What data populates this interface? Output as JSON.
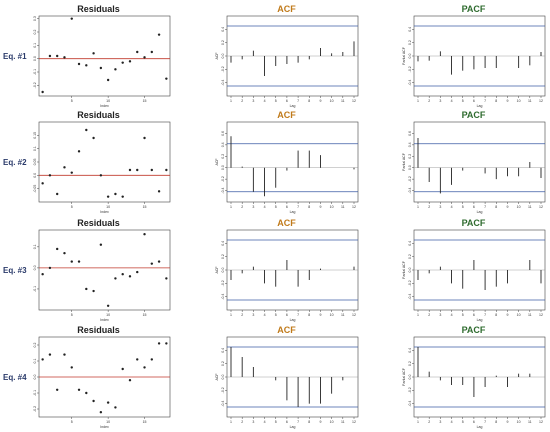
{
  "colors": {
    "residuals_title": "#222222",
    "acf_title": "#c07a1a",
    "pacf_title": "#2e6b2e",
    "row_label": "#2a3a6a",
    "zero_line": "#c0392b",
    "conf_band": "#3b5ba5",
    "marks": "#222222",
    "frame": "#444444"
  },
  "chart_data": [
    {
      "type": "scatter",
      "row": 0,
      "panel": "residuals",
      "row_label": "Eq. #1",
      "title": "Residuals",
      "xlabel": "Index",
      "ylabel": "",
      "x": [
        1,
        2,
        3,
        4,
        5,
        6,
        7,
        8,
        9,
        10,
        11,
        12,
        13,
        14,
        15,
        16,
        17,
        18
      ],
      "values": [
        -0.25,
        0.02,
        0.02,
        0.01,
        0.3,
        -0.04,
        -0.05,
        0.04,
        -0.07,
        -0.16,
        -0.08,
        -0.03,
        -0.02,
        0.05,
        0.01,
        0.05,
        0.18,
        -0.15
      ],
      "ylim": [
        -0.28,
        0.32
      ],
      "xlim": [
        0.5,
        18.5
      ],
      "zero_line": 0,
      "yticks": [
        -0.2,
        -0.1,
        0.0,
        0.1,
        0.2,
        0.3
      ],
      "xticks": [
        5,
        10,
        15
      ]
    },
    {
      "type": "bar",
      "row": 0,
      "panel": "acf",
      "title": "ACF",
      "xlabel": "Lag",
      "ylabel": "ACF",
      "lags": [
        1,
        2,
        3,
        4,
        5,
        6,
        7,
        8,
        9,
        10,
        11,
        12
      ],
      "values": [
        -0.1,
        -0.05,
        0.08,
        -0.3,
        -0.15,
        -0.12,
        -0.1,
        -0.05,
        0.12,
        0.04,
        0.06,
        0.22
      ],
      "conf": 0.45,
      "ylim": [
        -0.6,
        0.6
      ],
      "yticks": [
        -0.4,
        -0.2,
        0.0,
        0.2,
        0.4
      ],
      "xticks": [
        1,
        2,
        3,
        4,
        5,
        6,
        7,
        8,
        9,
        10,
        11,
        12
      ]
    },
    {
      "type": "bar",
      "row": 0,
      "panel": "pacf",
      "title": "PACF",
      "xlabel": "Lag",
      "ylabel": "Partial ACF",
      "lags": [
        1,
        2,
        3,
        4,
        5,
        6,
        7,
        8,
        9,
        10,
        11,
        12
      ],
      "values": [
        -0.08,
        -0.07,
        0.07,
        -0.28,
        -0.22,
        -0.2,
        -0.18,
        -0.18,
        0.0,
        -0.18,
        -0.14,
        0.06
      ],
      "conf": 0.45,
      "ylim": [
        -0.6,
        0.6
      ],
      "yticks": [
        -0.4,
        -0.2,
        0.0,
        0.2,
        0.4
      ],
      "xticks": [
        1,
        2,
        3,
        4,
        5,
        6,
        7,
        8,
        9,
        10,
        11,
        12
      ]
    },
    {
      "type": "scatter",
      "row": 1,
      "panel": "residuals",
      "row_label": "Eq. #2",
      "title": "Residuals",
      "xlabel": "Index",
      "ylabel": "",
      "x": [
        1,
        2,
        3,
        4,
        5,
        6,
        7,
        8,
        9,
        10,
        11,
        12,
        13,
        14,
        15,
        16,
        17,
        18
      ],
      "values": [
        -0.03,
        0.0,
        -0.07,
        0.03,
        0.01,
        0.09,
        0.17,
        0.14,
        0.0,
        -0.08,
        -0.07,
        -0.08,
        0.02,
        0.02,
        0.14,
        0.02,
        -0.06,
        0.02
      ],
      "ylim": [
        -0.1,
        0.2
      ],
      "xlim": [
        0.5,
        18.5
      ],
      "zero_line": 0,
      "yticks": [
        -0.05,
        0.0,
        0.05,
        0.1,
        0.15
      ],
      "xticks": [
        5,
        10,
        15
      ]
    },
    {
      "type": "bar",
      "row": 1,
      "panel": "acf",
      "title": "ACF",
      "xlabel": "Lag",
      "ylabel": "ACF",
      "lags": [
        1,
        2,
        3,
        4,
        5,
        6,
        7,
        8,
        9,
        10,
        11,
        12
      ],
      "values": [
        0.55,
        0.02,
        -0.42,
        -0.5,
        -0.35,
        -0.05,
        0.3,
        0.3,
        0.22,
        0.0,
        0.0,
        -0.03
      ],
      "conf": 0.42,
      "ylim": [
        -0.6,
        0.8
      ],
      "yticks": [
        -0.4,
        -0.2,
        0.0,
        0.2,
        0.4,
        0.6
      ],
      "xticks": [
        1,
        2,
        3,
        4,
        5,
        6,
        7,
        8,
        9,
        10,
        11,
        12
      ]
    },
    {
      "type": "bar",
      "row": 1,
      "panel": "pacf",
      "title": "PACF",
      "xlabel": "Lag",
      "ylabel": "Partial ACF",
      "lags": [
        1,
        2,
        3,
        4,
        5,
        6,
        7,
        8,
        9,
        10,
        11,
        12
      ],
      "values": [
        0.52,
        -0.25,
        -0.45,
        -0.3,
        -0.05,
        0.0,
        -0.1,
        -0.2,
        -0.15,
        -0.15,
        0.1,
        -0.18
      ],
      "conf": 0.42,
      "ylim": [
        -0.6,
        0.8
      ],
      "yticks": [
        -0.4,
        -0.2,
        0.0,
        0.2,
        0.4,
        0.6
      ],
      "xticks": [
        1,
        2,
        3,
        4,
        5,
        6,
        7,
        8,
        9,
        10,
        11,
        12
      ]
    },
    {
      "type": "scatter",
      "row": 2,
      "panel": "residuals",
      "row_label": "Eq. #3",
      "title": "Residuals",
      "xlabel": "Index",
      "ylabel": "",
      "x": [
        1,
        2,
        3,
        4,
        5,
        6,
        7,
        8,
        9,
        10,
        11,
        12,
        13,
        14,
        15,
        16,
        17,
        18
      ],
      "values": [
        -0.03,
        0.0,
        0.09,
        0.07,
        0.03,
        0.03,
        -0.1,
        -0.11,
        0.11,
        -0.18,
        -0.05,
        -0.03,
        -0.04,
        -0.02,
        0.16,
        0.02,
        0.03,
        -0.05
      ],
      "ylim": [
        -0.2,
        0.18
      ],
      "xlim": [
        0.5,
        18.5
      ],
      "zero_line": 0,
      "yticks": [
        -0.1,
        0.0,
        0.1
      ],
      "xticks": [
        5,
        10,
        15
      ]
    },
    {
      "type": "bar",
      "row": 2,
      "panel": "acf",
      "title": "ACF",
      "xlabel": "Lag",
      "ylabel": "ACF",
      "lags": [
        1,
        2,
        3,
        4,
        5,
        6,
        7,
        8,
        9,
        10,
        11,
        12
      ],
      "values": [
        -0.15,
        -0.05,
        0.05,
        -0.2,
        -0.25,
        0.15,
        -0.25,
        -0.15,
        0.02,
        0.0,
        0.0,
        0.05
      ],
      "conf": 0.45,
      "ylim": [
        -0.6,
        0.6
      ],
      "yticks": [
        -0.4,
        -0.2,
        0.0,
        0.2,
        0.4
      ],
      "xticks": [
        1,
        2,
        3,
        4,
        5,
        6,
        7,
        8,
        9,
        10,
        11,
        12
      ]
    },
    {
      "type": "bar",
      "row": 2,
      "panel": "pacf",
      "title": "PACF",
      "xlabel": "Lag",
      "ylabel": "Partial ACF",
      "lags": [
        1,
        2,
        3,
        4,
        5,
        6,
        7,
        8,
        9,
        10,
        11,
        12
      ],
      "values": [
        -0.15,
        -0.05,
        0.05,
        -0.2,
        -0.28,
        0.15,
        -0.3,
        -0.25,
        -0.2,
        0.0,
        0.15,
        -0.2
      ],
      "conf": 0.45,
      "ylim": [
        -0.6,
        0.6
      ],
      "yticks": [
        -0.4,
        -0.2,
        0.0,
        0.2,
        0.4
      ],
      "xticks": [
        1,
        2,
        3,
        4,
        5,
        6,
        7,
        8,
        9,
        10,
        11,
        12
      ]
    },
    {
      "type": "scatter",
      "row": 3,
      "panel": "residuals",
      "row_label": "Eq. #4",
      "title": "Residuals",
      "xlabel": "Index",
      "ylabel": "",
      "x": [
        1,
        2,
        3,
        4,
        5,
        6,
        7,
        8,
        9,
        10,
        11,
        12,
        13,
        14,
        15,
        16,
        17,
        18
      ],
      "values": [
        0.11,
        0.14,
        -0.08,
        0.14,
        0.06,
        -0.08,
        -0.1,
        -0.15,
        -0.22,
        -0.16,
        -0.19,
        0.05,
        -0.02,
        0.11,
        0.06,
        0.11,
        0.21,
        0.21
      ],
      "ylim": [
        -0.25,
        0.25
      ],
      "xlim": [
        0.5,
        18.5
      ],
      "zero_line": 0,
      "yticks": [
        -0.2,
        -0.1,
        0.0,
        0.1,
        0.2
      ],
      "xticks": [
        5,
        10,
        15
      ]
    },
    {
      "type": "bar",
      "row": 3,
      "panel": "acf",
      "title": "ACF",
      "xlabel": "Lag",
      "ylabel": "ACF",
      "lags": [
        1,
        2,
        3,
        4,
        5,
        6,
        7,
        8,
        9,
        10,
        11,
        12
      ],
      "values": [
        0.45,
        0.3,
        0.15,
        0.0,
        -0.05,
        -0.35,
        -0.45,
        -0.4,
        -0.4,
        -0.25,
        -0.05,
        0.0
      ],
      "conf": 0.45,
      "ylim": [
        -0.6,
        0.6
      ],
      "yticks": [
        -0.4,
        -0.2,
        0.0,
        0.2,
        0.4
      ],
      "xticks": [
        1,
        2,
        3,
        4,
        5,
        6,
        7,
        8,
        9,
        10,
        11,
        12
      ]
    },
    {
      "type": "bar",
      "row": 3,
      "panel": "pacf",
      "title": "PACF",
      "xlabel": "Lag",
      "ylabel": "Partial ACF",
      "lags": [
        1,
        2,
        3,
        4,
        5,
        6,
        7,
        8,
        9,
        10,
        11,
        12
      ],
      "values": [
        0.45,
        0.08,
        -0.05,
        -0.12,
        -0.12,
        -0.3,
        -0.15,
        0.02,
        -0.15,
        0.05,
        0.05,
        0.0
      ],
      "conf": 0.45,
      "ylim": [
        -0.6,
        0.6
      ],
      "yticks": [
        -0.4,
        -0.2,
        0.0,
        0.2,
        0.4
      ],
      "xticks": [
        1,
        2,
        3,
        4,
        5,
        6,
        7,
        8,
        9,
        10,
        11,
        12
      ]
    }
  ]
}
